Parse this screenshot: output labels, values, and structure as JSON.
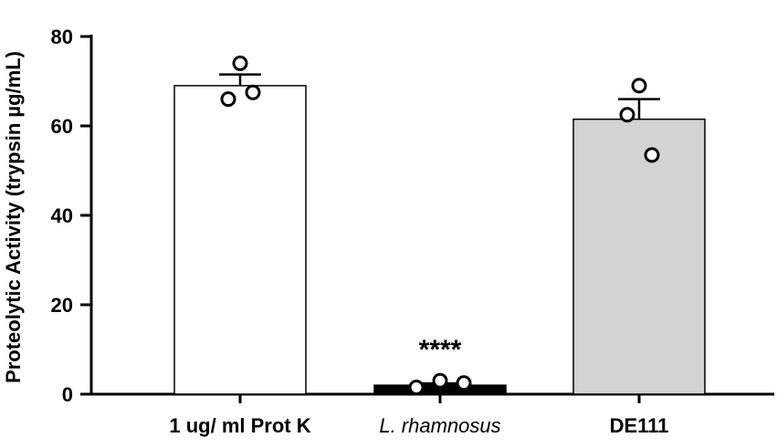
{
  "chart_data": {
    "type": "bar",
    "title": "",
    "xlabel": "",
    "ylabel": "Proteolytic Activity (trypsin µg/mL)",
    "ylim": [
      0,
      80
    ],
    "yticks": [
      0,
      20,
      40,
      60,
      80
    ],
    "categories": [
      "1 ug/ ml Prot K",
      "L. rhamnosus",
      "DE111"
    ],
    "category_styles": [
      "bold",
      "italic",
      "bold"
    ],
    "values": [
      69,
      2,
      61.5
    ],
    "errors": [
      2.5,
      0.4,
      4.5
    ],
    "points": [
      [
        74,
        66,
        67.5
      ],
      [
        1.5,
        3,
        2.5
      ],
      [
        69,
        62.5,
        53.5
      ]
    ],
    "bar_colors": [
      "#ffffff",
      "#000000",
      "#d3d3d3"
    ],
    "annotations": [
      {
        "category": "L. rhamnosus",
        "text": "****"
      }
    ],
    "grid": false,
    "legend": "none"
  }
}
